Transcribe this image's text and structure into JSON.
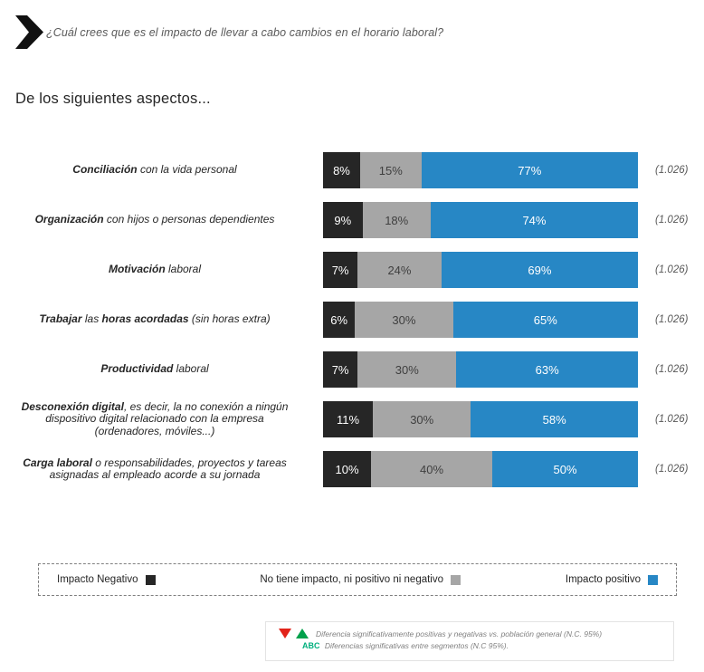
{
  "header": {
    "question": "¿Cuál crees que es el impacto de llevar a cabo cambios en el horario laboral?"
  },
  "title": "De los siguientes aspectos...",
  "chart_data": {
    "type": "bar",
    "variant": "horizontal-stacked-100",
    "unit": "%",
    "xlim": [
      0,
      100
    ],
    "grid": false,
    "legend_position": "bottom",
    "series_colors": [
      "#262626",
      "#A6A6A6",
      "#2787C5"
    ],
    "categories": [
      "Conciliación con la vida personal",
      "Organización con hijos o personas dependientes",
      "Motivación laboral",
      "Trabajar las horas acordadas (sin  horas extra)",
      "Productividad laboral",
      "Desconexión digital, es decir, la no conexión a ningún dispositivo digital relacionado con la empresa (ordenadores, móviles...)",
      "Carga laboral o responsabilidades, proyectos y tareas asignadas al empleado acorde a su jornada"
    ],
    "series": [
      {
        "name": "Impacto Negativo",
        "values": [
          8,
          9,
          7,
          6,
          7,
          11,
          10
        ]
      },
      {
        "name": "No tiene impacto, ni positivo ni negativo",
        "values": [
          15,
          18,
          24,
          30,
          30,
          30,
          40
        ]
      },
      {
        "name": "Impacto positivo",
        "values": [
          77,
          74,
          69,
          65,
          63,
          58,
          50
        ]
      }
    ],
    "base_n": "(1.026)",
    "rows": [
      {
        "label_segments": [
          {
            "t": "Conciliación",
            "b": true
          },
          {
            "t": " con la vida personal",
            "b": false
          }
        ],
        "neg": 8,
        "neu": 15,
        "pos": 77,
        "neg_label": "8%",
        "neu_label": "15%",
        "pos_label": "77%",
        "base": "(1.026)"
      },
      {
        "label_segments": [
          {
            "t": "Organización",
            "b": true
          },
          {
            "t": " con hijos o personas dependientes",
            "b": false
          }
        ],
        "neg": 9,
        "neu": 18,
        "pos": 74,
        "neg_label": "9%",
        "neu_label": "18%",
        "pos_label": "74%",
        "base": "(1.026)"
      },
      {
        "label_segments": [
          {
            "t": "Motivación",
            "b": true
          },
          {
            "t": " laboral",
            "b": false
          }
        ],
        "neg": 7,
        "neu": 24,
        "pos": 69,
        "neg_label": "7%",
        "neu_label": "24%",
        "pos_label": "69%",
        "base": "(1.026)"
      },
      {
        "label_segments": [
          {
            "t": "Trabajar",
            "b": true
          },
          {
            "t": " las ",
            "b": false
          },
          {
            "t": "horas acordadas",
            "b": true
          },
          {
            "t": " (sin  horas extra)",
            "b": false
          }
        ],
        "neg": 6,
        "neu": 30,
        "pos": 65,
        "neg_label": "6%",
        "neu_label": "30%",
        "pos_label": "65%",
        "base": "(1.026)"
      },
      {
        "label_segments": [
          {
            "t": "Productividad",
            "b": true
          },
          {
            "t": " laboral",
            "b": false
          }
        ],
        "neg": 7,
        "neu": 30,
        "pos": 63,
        "neg_label": "7%",
        "neu_label": "30%",
        "pos_label": "63%",
        "base": "(1.026)"
      },
      {
        "label_segments": [
          {
            "t": "Desconexión digital",
            "b": true
          },
          {
            "t": ", es decir, la no conexión a ningún dispositivo digital relacionado con la empresa (ordenadores, móviles...)",
            "b": false
          }
        ],
        "neg": 11,
        "neu": 30,
        "pos": 58,
        "neg_label": "11%",
        "neu_label": "30%",
        "pos_label": "58%",
        "base": "(1.026)"
      },
      {
        "label_segments": [
          {
            "t": "Carga laboral",
            "b": true
          },
          {
            "t": " o responsabilidades, proyectos y tareas asignadas al empleado acorde a su jornada",
            "b": false
          }
        ],
        "neg": 10,
        "neu": 40,
        "pos": 50,
        "neg_label": "10%",
        "neu_label": "40%",
        "pos_label": "50%",
        "base": "(1.026)"
      }
    ]
  },
  "legend": {
    "items": [
      {
        "label": "Impacto Negativo",
        "color": "#262626"
      },
      {
        "label": "No tiene impacto, ni positivo ni negativo",
        "color": "#A6A6A6"
      },
      {
        "label": "Impacto positivo",
        "color": "#2787C5"
      }
    ]
  },
  "notes": {
    "line1": "Diferencia significativamente  positivas y negativas vs. población general (N.C. 95%)",
    "line2_abc": "ABC",
    "line2": " Diferencias significativas entre segmentos (N.C 95%).",
    "colors": {
      "down_triangle": "#E2231A",
      "up_triangle": "#00A14B",
      "abc": "#00AF7D"
    }
  }
}
